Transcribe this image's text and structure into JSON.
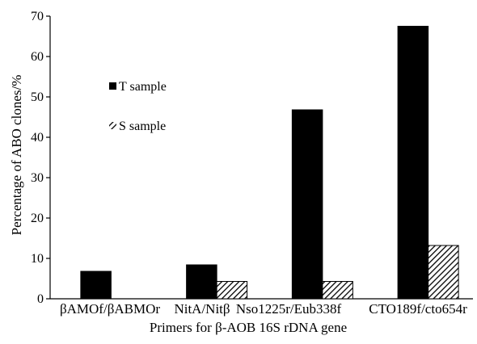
{
  "chart_data": {
    "type": "bar",
    "title": "",
    "xlabel": "Primers for β-AOB  16S rDNA gene",
    "ylabel": "Percentage of ABO clones/%",
    "ylim": [
      0,
      70
    ],
    "yticks": [
      0,
      10,
      20,
      30,
      40,
      50,
      60,
      70
    ],
    "grid": false,
    "legend_position": "upper-left",
    "categories": [
      "βAMOf/βABMOr",
      "NitA/Nitβ",
      "Nso1225r/Eub338f",
      "CTO189f/cto654r"
    ],
    "series": [
      {
        "name": "T sample",
        "fill": "solid-black",
        "color": "#000000",
        "values": [
          6.8,
          8.4,
          46.8,
          67.5
        ]
      },
      {
        "name": "S sample",
        "fill": "diagonal-hatch",
        "color": "#000000",
        "values": [
          0,
          4.3,
          4.3,
          13.2
        ]
      }
    ]
  }
}
